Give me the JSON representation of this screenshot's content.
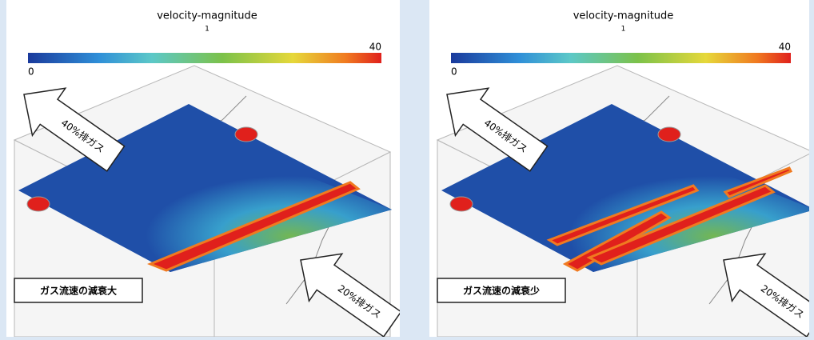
{
  "panels": [
    {
      "title": "velocity-magnitude",
      "unit": "1",
      "scale_min": 0,
      "scale_max": 40,
      "arrow_top": "40%排ガス",
      "arrow_bottom": "20%排ガス",
      "note": "ガス流速の減衰大"
    },
    {
      "title": "velocity-magnitude",
      "unit": "1",
      "scale_min": 0,
      "scale_max": 40,
      "arrow_top": "40%排ガス",
      "arrow_bottom": "20%排ガス",
      "note": "ガス流速の減衰少"
    }
  ]
}
